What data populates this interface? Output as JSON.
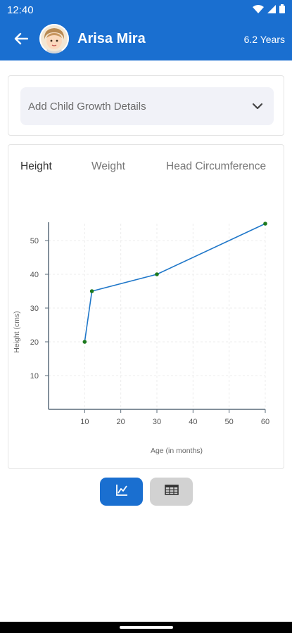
{
  "status": {
    "time": "12:40"
  },
  "header": {
    "child_name": "Arisa Mira",
    "age": "6.2 Years",
    "back_icon": "arrow-back-icon",
    "avatar_icon": "child-avatar-icon"
  },
  "add_details": {
    "label": "Add Child Growth Details",
    "icon": "chevron-down-icon"
  },
  "tabs": [
    {
      "label": "Height",
      "active": true
    },
    {
      "label": "Weight",
      "active": false
    },
    {
      "label": "Head Circumference",
      "active": false
    }
  ],
  "chart_data": {
    "type": "line",
    "x": [
      10,
      12,
      30,
      60
    ],
    "series": [
      {
        "values": [
          20,
          35,
          40,
          55
        ]
      }
    ],
    "xlabel": "Age (in months)",
    "ylabel": "Height (cms)",
    "xticks": [
      10,
      20,
      30,
      40,
      50,
      60
    ],
    "yticks": [
      10,
      20,
      30,
      40,
      50
    ],
    "xlim": [
      0,
      60
    ],
    "ylim": [
      0,
      55
    ],
    "grid": true,
    "line_color": "#1f77c9",
    "point_color": "#1e7a1e"
  },
  "view_toggle": {
    "graph": {
      "icon": "line-chart-icon",
      "selected": true
    },
    "table": {
      "icon": "table-icon",
      "selected": false
    }
  },
  "colors": {
    "primary": "#1a6fd0",
    "toggle_inactive": "#d2d2d2"
  }
}
